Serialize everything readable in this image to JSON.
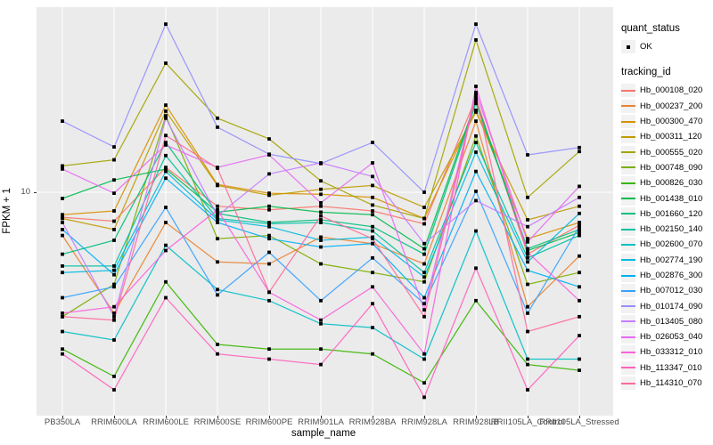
{
  "figure": {
    "panel_background": "#EBEBEB",
    "gridline_color": "#FFFFFF",
    "marker_color": "#000000",
    "axis_text_color": "#4D4D4D"
  },
  "y_axis": {
    "title": "FPKM + 1",
    "tick_labels": [
      "10"
    ]
  },
  "x_axis": {
    "title": "sample_name"
  },
  "legend": {
    "quant_status": {
      "title": "quant_status",
      "items": [
        {
          "label": "OK",
          "marker": "black-square"
        }
      ]
    },
    "tracking_id": {
      "title": "tracking_id",
      "items": [
        {
          "label": "Hb_000108_020",
          "color": "#F8766D"
        },
        {
          "label": "Hb_000237_200",
          "color": "#EA8331"
        },
        {
          "label": "Hb_000300_470",
          "color": "#D89000"
        },
        {
          "label": "Hb_000311_120",
          "color": "#C09B00"
        },
        {
          "label": "Hb_000555_020",
          "color": "#A3A500"
        },
        {
          "label": "Hb_000748_090",
          "color": "#7CAE00"
        },
        {
          "label": "Hb_000826_030",
          "color": "#39B600"
        },
        {
          "label": "Hb_001438_010",
          "color": "#00BB4E"
        },
        {
          "label": "Hb_001660_120",
          "color": "#00BF7D"
        },
        {
          "label": "Hb_002150_140",
          "color": "#00C1A3"
        },
        {
          "label": "Hb_002600_070",
          "color": "#00BFC4"
        },
        {
          "label": "Hb_002774_190",
          "color": "#00BAE0"
        },
        {
          "label": "Hb_002876_300",
          "color": "#00B0F6"
        },
        {
          "label": "Hb_007012_030",
          "color": "#35A2FF"
        },
        {
          "label": "Hb_010174_090",
          "color": "#9590FF"
        },
        {
          "label": "Hb_013405_080",
          "color": "#C77CFF"
        },
        {
          "label": "Hb_026053_040",
          "color": "#E76BF3"
        },
        {
          "label": "Hb_033312_010",
          "color": "#FA62DB"
        },
        {
          "label": "Hb_113347_010",
          "color": "#FF62BC"
        },
        {
          "label": "Hb_114310_070",
          "color": "#FF6A98"
        }
      ]
    }
  },
  "chart_data": {
    "type": "line",
    "xlabel": "sample_name",
    "ylabel": "FPKM + 1",
    "y_scale": "log10",
    "yticks": [
      10
    ],
    "grid": "major",
    "legend_position": "right",
    "point_marker": "filled-black-square",
    "categories": [
      "PB350LA",
      "RRIM600LA",
      "RRIM600LE",
      "RRIM600SE",
      "RRIM600PE",
      "RRIM901LA",
      "RRIM928BA",
      "RRIM928LA",
      "RRIM928LB",
      "RRII105LA_Control",
      "RRII105LA_Stressed"
    ],
    "series": [
      {
        "name": "Hb_000108_020",
        "color": "#F8766D",
        "values": [
          7.8,
          7.5,
          12.8,
          8.7,
          8.4,
          8.7,
          8.3,
          7.3,
          25.6,
          5.4,
          7.2
        ]
      },
      {
        "name": "Hb_000237_200",
        "color": "#EA8331",
        "values": [
          6.5,
          3.0,
          7.4,
          5.0,
          4.9,
          6.4,
          6.0,
          4.9,
          20.3,
          3.2,
          5.3
        ]
      },
      {
        "name": "Hb_000300_470",
        "color": "#D89000",
        "values": [
          8.0,
          8.3,
          23.8,
          10.8,
          9.9,
          9.8,
          9.5,
          7.7,
          22.6,
          6.3,
          7.4
        ]
      },
      {
        "name": "Hb_000311_120",
        "color": "#C09B00",
        "values": [
          7.7,
          6.9,
          22.4,
          10.7,
          9.7,
          10.3,
          10.7,
          8.6,
          22.2,
          7.6,
          8.7
        ]
      },
      {
        "name": "Hb_000555_020",
        "color": "#A3A500",
        "values": [
          13.0,
          13.8,
          36.1,
          20.9,
          17.0,
          11.2,
          8.8,
          7.7,
          45.5,
          9.5,
          15.0
        ]
      },
      {
        "name": "Hb_000748_090",
        "color": "#7CAE00",
        "values": [
          2.9,
          4.0,
          21.4,
          6.3,
          6.5,
          4.9,
          4.5,
          4.1,
          17.5,
          4.0,
          4.5
        ]
      },
      {
        "name": "Hb_000826_030",
        "color": "#39B600",
        "values": [
          2.1,
          1.6,
          4.1,
          2.2,
          2.1,
          2.1,
          2.0,
          1.5,
          3.4,
          1.8,
          1.7
        ]
      },
      {
        "name": "Hb_001438_010",
        "color": "#00BB4E",
        "values": [
          9.4,
          11.3,
          12.6,
          8.2,
          8.7,
          8.2,
          8.0,
          5.7,
          24.9,
          5.6,
          6.7
        ]
      },
      {
        "name": "Hb_001660_120",
        "color": "#00BF7D",
        "values": [
          5.4,
          6.2,
          16.4,
          8.1,
          7.4,
          7.6,
          7.1,
          5.4,
          24.2,
          5.7,
          6.9
        ]
      },
      {
        "name": "Hb_002150_140",
        "color": "#00C1A3",
        "values": [
          4.8,
          4.8,
          14.4,
          7.7,
          7.3,
          7.4,
          6.8,
          4.5,
          16.4,
          5.2,
          6.5
        ]
      },
      {
        "name": "Hb_002600_070",
        "color": "#00BFC4",
        "values": [
          2.5,
          2.3,
          5.9,
          3.8,
          3.4,
          2.7,
          2.6,
          1.9,
          6.8,
          1.9,
          1.9
        ]
      },
      {
        "name": "Hb_002774_190",
        "color": "#00BAE0",
        "values": [
          4.5,
          4.6,
          12.3,
          7.6,
          7.1,
          6.2,
          6.4,
          4.3,
          14.9,
          5.0,
          8.1
        ]
      },
      {
        "name": "Hb_002876_300",
        "color": "#00B0F6",
        "values": [
          6.9,
          4.4,
          11.5,
          7.4,
          6.3,
          5.8,
          6.0,
          3.5,
          12.3,
          4.6,
          3.9
        ]
      },
      {
        "name": "Hb_007012_030",
        "color": "#35A2FF",
        "values": [
          3.5,
          3.9,
          8.6,
          3.6,
          5.5,
          3.4,
          5.2,
          3.3,
          10.1,
          3.0,
          7.1
        ]
      },
      {
        "name": "Hb_010174_090",
        "color": "#9590FF",
        "values": [
          20.3,
          15.7,
          53.3,
          19.1,
          14.6,
          13.3,
          16.4,
          10.0,
          53.3,
          14.5,
          15.6
        ]
      },
      {
        "name": "Hb_013405_080",
        "color": "#C77CFF",
        "values": [
          7.4,
          2.9,
          20.9,
          7.9,
          12.0,
          13.4,
          11.7,
          6.0,
          9.2,
          7.1,
          9.5
        ]
      },
      {
        "name": "Hb_026053_040",
        "color": "#E76BF3",
        "values": [
          12.6,
          9.9,
          16.0,
          12.8,
          14.5,
          9.0,
          13.4,
          3.1,
          27.0,
          6.1,
          10.6
        ]
      },
      {
        "name": "Hb_033312_010",
        "color": "#FA62DB",
        "values": [
          3.0,
          3.2,
          5.6,
          8.4,
          3.7,
          2.8,
          3.9,
          2.0,
          28.7,
          5.5,
          3.4
        ]
      },
      {
        "name": "Hb_113347_010",
        "color": "#FF62BC",
        "values": [
          2.0,
          1.4,
          3.5,
          2.0,
          1.9,
          1.8,
          3.3,
          1.3,
          4.7,
          1.4,
          2.4
        ]
      },
      {
        "name": "Hb_114310_070",
        "color": "#FF6A98",
        "values": [
          2.9,
          2.8,
          17.6,
          12.7,
          3.7,
          7.9,
          6.3,
          2.9,
          26.4,
          2.5,
          2.9
        ]
      }
    ]
  }
}
